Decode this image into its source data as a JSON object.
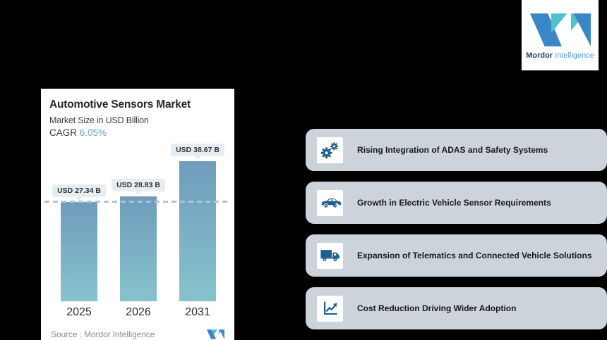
{
  "brand": {
    "name_bold": "Mordor",
    "name_light": "Intelligence"
  },
  "chart_card": {
    "title": "Automotive Sensors Market",
    "subtitle": "Market Size in USD Billion",
    "cagr_label": "CAGR",
    "cagr_value": "6.05%",
    "source_label": "Source :",
    "source_value": "Mordor Intelligence"
  },
  "chart_data": {
    "type": "bar",
    "title": "Automotive Sensors Market",
    "ylabel": "Market Size in USD Billion",
    "cagr": "6.05%",
    "categories": [
      "2025",
      "2026",
      "2031"
    ],
    "values": [
      27.34,
      28.83,
      38.67
    ],
    "value_labels": [
      "USD 27.34 B",
      "USD 28.83 B",
      "USD 38.67 B"
    ],
    "reference_line": 27.34,
    "grid": false,
    "legend": false,
    "bar_gradient": [
      "#6f9cbc",
      "#87c3cd"
    ]
  },
  "drivers": {
    "items": [
      {
        "icon": "gears-icon",
        "label": "Rising Integration of ADAS and Safety Systems"
      },
      {
        "icon": "car-icon",
        "label": "Growth in Electric Vehicle Sensor Requirements"
      },
      {
        "icon": "truck-icon",
        "label": "Expansion of Telematics and Connected Vehicle Solutions"
      },
      {
        "icon": "line-chart-icon",
        "label": "Cost Reduction Driving Wider Adoption"
      }
    ]
  },
  "colors": {
    "background": "#000000",
    "card_bg": "#ffffff",
    "accent_blue": "#69a3c9",
    "bar_top": "#6f9cbc",
    "bar_bottom": "#87c3cd",
    "value_pill_bg": "#e6edf0",
    "dash_line": "#a8c6d7",
    "driver_bg": "#cdd3da",
    "icon_blue": "#1d608c",
    "logo_blue": "#3a86c6",
    "logo_teal": "#4cc0cb",
    "logo_navy": "#1b3e6b",
    "logo_light_blue": "#4e9ed3"
  }
}
